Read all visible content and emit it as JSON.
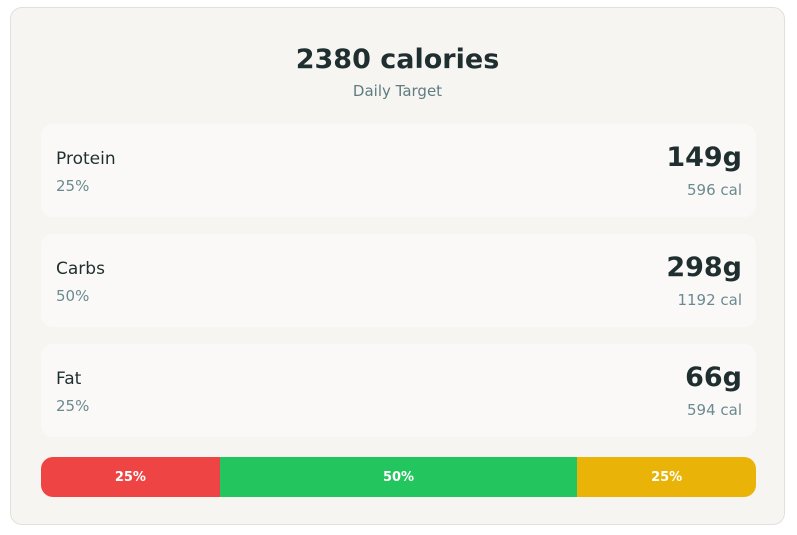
{
  "header": {
    "title": "2380 calories",
    "subtitle": "Daily Target"
  },
  "macros": [
    {
      "name": "Protein",
      "percent": {
        "value": 25,
        "label": "25%"
      },
      "grams": "149g",
      "calories": "596 cal",
      "color": "#ef4444"
    },
    {
      "name": "Carbs",
      "percent": {
        "value": 50,
        "label": "50%"
      },
      "grams": "298g",
      "calories": "1192 cal",
      "color": "#22c55e"
    },
    {
      "name": "Fat",
      "percent": {
        "value": 25,
        "label": "25%"
      },
      "grams": "66g",
      "calories": "594 cal",
      "color": "#eab308"
    }
  ]
}
